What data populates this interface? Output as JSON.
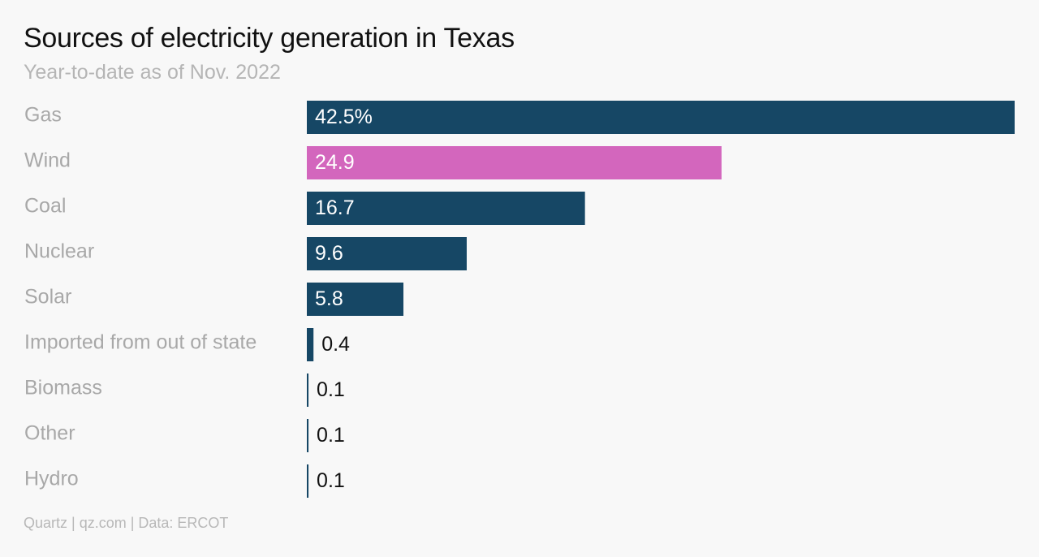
{
  "title": "Sources of electricity generation in Texas",
  "subtitle": "Year-to-date as of Nov. 2022",
  "footer": "Quartz | qz.com | Data: ERCOT",
  "colors": {
    "bar": "#164765",
    "highlight": "#d366bd",
    "category_label": "#a8a8a8",
    "inside_label": "#ffffff",
    "outside_label": "#111111"
  },
  "chart_data": {
    "type": "bar",
    "orientation": "horizontal",
    "unit": "%",
    "categories": [
      "Gas",
      "Wind",
      "Coal",
      "Nuclear",
      "Solar",
      "Imported from out of state",
      "Biomass",
      "Other",
      "Hydro"
    ],
    "values": [
      42.5,
      24.9,
      16.7,
      9.6,
      5.8,
      0.4,
      0.1,
      0.1,
      0.1
    ],
    "value_labels": [
      "42.5%",
      "24.9",
      "16.7",
      "9.6",
      "5.8",
      "0.4",
      "0.1",
      "0.1",
      "0.1"
    ],
    "highlighted": [
      "Wind"
    ],
    "xlim": [
      0,
      42.5
    ],
    "grid": false,
    "legend": "none"
  }
}
